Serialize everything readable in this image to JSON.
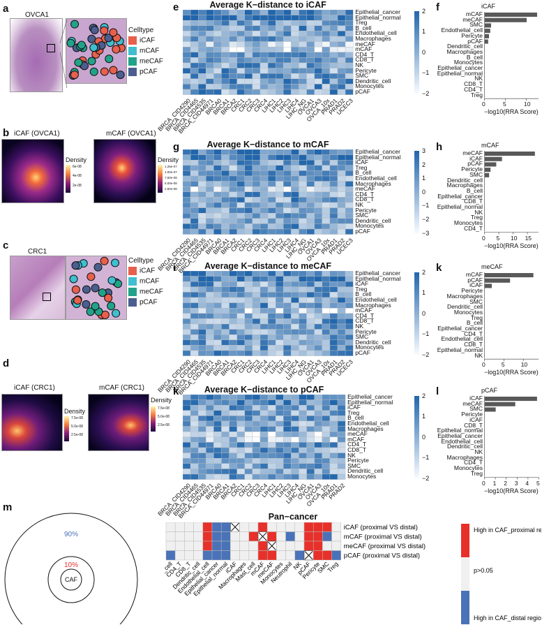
{
  "panel_letters": {
    "a": "a",
    "b": "b",
    "c": "c",
    "d": "d",
    "e": "e",
    "f": "f",
    "g": "g",
    "h": "h",
    "i": "i",
    "k": "k",
    "k2": "k",
    "l": "l",
    "m": "m"
  },
  "panel_a": {
    "title": "OVCA1",
    "legend_title": "Celltype",
    "legend": [
      {
        "label": "iCAF",
        "color": "#e8604c"
      },
      {
        "label": "mCAF",
        "color": "#3fbfcf"
      },
      {
        "label": "meCAF",
        "color": "#21a38a"
      },
      {
        "label": "pCAF",
        "color": "#4a5f8f"
      }
    ]
  },
  "panel_b": {
    "left_title": "iCAF (OVCA1)",
    "right_title": "mCAF (OVCA1)",
    "density_label": "Density",
    "left_ticks": [
      "6e-08",
      "4e-08",
      "2e-08"
    ],
    "right_ticks": [
      "1.25e-07",
      "1.00e-07",
      "7.50e-08",
      "5.00e-08",
      "2.50e-08"
    ]
  },
  "panel_c": {
    "title": "CRC1",
    "legend_title": "Celltype",
    "legend": [
      {
        "label": "iCAF",
        "color": "#e8604c"
      },
      {
        "label": "mCAF",
        "color": "#3fbfcf"
      },
      {
        "label": "meCAF",
        "color": "#21a38a"
      },
      {
        "label": "pCAF",
        "color": "#4a5f8f"
      }
    ]
  },
  "panel_d": {
    "left_title": "iCAF (CRC1)",
    "right_title": "mCAF (CRC1)",
    "density_label": "Density",
    "left_ticks": [
      "7.5e-08",
      "5.0e-08",
      "2.5e-08"
    ],
    "right_ticks": [
      "7.5e-08",
      "5.0e-08",
      "2.5e-08"
    ]
  },
  "heatmaps": [
    {
      "title": "Average K−distance to iCAF",
      "rows": [
        "Epithelial_cancer",
        "Epithelial_normal",
        "Treg",
        "B_cell",
        "Endothelial_cell",
        "Macrophages",
        "meCAF",
        "mCAF",
        "CD4_T",
        "CD8_T",
        "NK",
        "Pericyte",
        "SMC",
        "Dendritic_cell",
        "Monocytes",
        "pCAF"
      ],
      "cols": [
        "BRCA_CID4290",
        "BRCA_CID4465",
        "BRCA_CID4535",
        "BRCA_CID44971",
        "BRCA0",
        "BRCA1",
        "BRCA2",
        "CRC1",
        "CRC2",
        "CRC3",
        "CRC4",
        "LIHC1",
        "LIHC2",
        "LIHC3",
        "LIHC4",
        "LIHC_NG",
        "OVCA1",
        "OVCA3",
        "OVCA_10x",
        "PRAD1",
        "PRAD2",
        "UCEC3"
      ],
      "scale": [
        "2",
        "1",
        "0",
        "−1",
        "−2"
      ]
    },
    {
      "title": "Average K−distance to mCAF",
      "rows": [
        "Epithelial_cancer",
        "Epithelial_normal",
        "iCAF",
        "Treg",
        "B_cell",
        "Endothelial_cell",
        "Macrophages",
        "meCAF",
        "CD4_T",
        "CD8_T",
        "NK",
        "Pericyte",
        "SMC",
        "Dendritic_cell",
        "Monocytes",
        "pCAF"
      ],
      "cols": [
        "BRCA_CID4290",
        "BRCA_CID4465",
        "BRCA_CID4535",
        "BRCA_CID44971",
        "BRCA0",
        "BRCA1",
        "BRCA2",
        "CRC1",
        "CRC2",
        "CRC3",
        "CRC4",
        "LIHC1",
        "LIHC2",
        "LIHC3",
        "LIHC4",
        "LIHC_NG",
        "OVCA1",
        "OVCA3",
        "OVCA_10x",
        "PRAD1",
        "PRAD2",
        "UCEC3"
      ],
      "scale": [
        "3",
        "2",
        "1",
        "0",
        "−1",
        "−2",
        "−3"
      ]
    },
    {
      "title": "Average K−distance to meCAF",
      "rows": [
        "Epithelial_cancer",
        "Epithelial_normal",
        "iCAF",
        "Treg",
        "B_cell",
        "Endothelial_cell",
        "Macrophages",
        "mCAF",
        "CD4_T",
        "CD8_T",
        "NK",
        "Pericyte",
        "SMC",
        "Dendritic_cell",
        "Monocytes",
        "pCAF"
      ],
      "cols": [
        "BRCA_CID4290",
        "BRCA_CID4465",
        "BRCA_CID4535",
        "BRCA_CID44971",
        "BRCA0",
        "BRCA1",
        "BRCA2",
        "CRC1",
        "CRC2",
        "CRC3",
        "CRC4",
        "LIHC1",
        "LIHC2",
        "LIHC3",
        "LIHC4",
        "LIHC_NG",
        "OVCA1",
        "OVCA3",
        "OVCA_10x",
        "PRAD1",
        "PRAD2",
        "UCEC3"
      ],
      "scale": [
        "2",
        "1",
        "0",
        "−1",
        "−2"
      ]
    },
    {
      "title": "Average K−distance to pCAF",
      "rows": [
        "Epithelial_cancer",
        "Epithelial_normal",
        "iCAF",
        "Treg",
        "B_cell",
        "Endothelial_cell",
        "Macrophages",
        "meCAF",
        "mCAF",
        "CD4_T",
        "CD8_T",
        "NK",
        "Pericyte",
        "SMC",
        "Dendritic_cell",
        "Monocytes"
      ],
      "cols": [
        "BRCA_CID4290",
        "BRCA_CID4465",
        "BRCA_CID4535",
        "BRCA_CID44971",
        "BRCA0",
        "BRCA1",
        "BRCA2",
        "CRC1",
        "CRC2",
        "CRC3",
        "CRC4",
        "LIHC1",
        "LIHC2",
        "LIHC3",
        "LIHC4",
        "LIHC_NG",
        "OVCA1",
        "OVCA3",
        "OVCA_10x",
        "PRAD1",
        "PRAD2"
      ],
      "scale": [
        "2",
        "1",
        "0",
        "−1",
        "−2"
      ]
    }
  ],
  "chart_data": [
    {
      "type": "bar",
      "title": "iCAF",
      "xlabel": "−log10(RRA Score)",
      "xlim": [
        0,
        13
      ],
      "xticks": [
        "0",
        "5",
        "10"
      ],
      "categories": [
        "mCAF",
        "meCAF",
        "SMC",
        "Endothelial_cell",
        "Pericyte",
        "pCAF",
        "Dendritic_cell",
        "Macrophages",
        "B_cell",
        "Monocytes",
        "Epithelial_cancer",
        "Epithelial_normal",
        "NK",
        "CD8_T",
        "CD4_T",
        "Treg"
      ],
      "values": [
        12.5,
        10.0,
        1.5,
        1.3,
        1.0,
        0.8,
        0,
        0,
        0,
        0,
        0,
        0,
        0,
        0,
        0,
        0
      ]
    },
    {
      "type": "bar",
      "title": "mCAF",
      "xlabel": "−log10(RRA Score)",
      "xlim": [
        0,
        19
      ],
      "xticks": [
        "0",
        "5",
        "10",
        "15"
      ],
      "categories": [
        "meCAF",
        "iCAF",
        "pCAF",
        "Pericyte",
        "SMC",
        "Dendritic_cell",
        "Macrophages",
        "B_cell",
        "Epithelial_cancer",
        "CD8_T",
        "Epithelial_normal",
        "NK",
        "Treg",
        "Monocytes",
        "CD4_T"
      ],
      "values": [
        17.5,
        6.0,
        4.0,
        2.0,
        1.5,
        0,
        0,
        0,
        0,
        0,
        0,
        0,
        0,
        0,
        0
      ]
    },
    {
      "type": "bar",
      "title": "meCAF",
      "xlabel": "−log10(RRA Score)",
      "xlim": [
        0,
        14
      ],
      "xticks": [
        "0",
        "5",
        "10"
      ],
      "categories": [
        "mCAF",
        "pCAF",
        "iCAF",
        "Pericyte",
        "Macrophages",
        "SMC",
        "Dendritic_cell",
        "Monocytes",
        "Treg",
        "B_cell",
        "Epithelial_cancer",
        "CD4_T",
        "Endothelial_cell",
        "CD8_T",
        "Epithelial_normal",
        "NK"
      ],
      "values": [
        12.5,
        6.5,
        1.8,
        0,
        0,
        0,
        0,
        0,
        0,
        0,
        0,
        0,
        0,
        0,
        0,
        0
      ]
    },
    {
      "type": "bar",
      "title": "pCAF",
      "xlabel": "−log10(RRA Score)",
      "xlim": [
        0,
        5
      ],
      "xticks": [
        "0",
        "1",
        "2",
        "3",
        "4",
        "5"
      ],
      "categories": [
        "iCAF",
        "meCAF",
        "SMC",
        "Pericyte",
        "iCAF",
        "CD8_T",
        "Epithelial_normal",
        "Epithelial_cancer",
        "Endothelial_cell",
        "Dendritic_cell",
        "NK",
        "Macrophages",
        "CD4_T",
        "Monocytes",
        "Treg"
      ],
      "values": [
        4.8,
        2.8,
        1.0,
        0,
        0,
        0,
        0,
        0,
        0,
        0,
        0,
        0,
        0,
        0,
        0
      ]
    },
    {
      "type": "heatmap",
      "title": "Pan−cancer",
      "cols": [
        "B_cell",
        "CD4_T",
        "CD8_T",
        "Dendritic_cell",
        "Endothelial_cell",
        "Epithelial_cancer",
        "Epithelial_normal",
        "iCAF",
        "Macrophages",
        "Mast_cell",
        "mCAF",
        "meCAF",
        "Monocytes",
        "Neutrophil",
        "NK",
        "pCAF",
        "Pericyte",
        "SMC",
        "Treg"
      ],
      "rows": [
        "iCAF (proximal VS distal)",
        "mCAF (proximal VS distal)",
        "meCAF (proximal VS distal)",
        "pCAF (proximal VS distal)"
      ],
      "values": [
        [
          0,
          0,
          0,
          0,
          1,
          -1,
          -1,
          2,
          0,
          0,
          1,
          0,
          0,
          0,
          0,
          1,
          1,
          1,
          0
        ],
        [
          0,
          0,
          0,
          0,
          1,
          -1,
          -1,
          0,
          0,
          1,
          2,
          1,
          0,
          -1,
          0,
          1,
          1,
          -1,
          0
        ],
        [
          0,
          0,
          0,
          0,
          1,
          -1,
          -1,
          0,
          0,
          0,
          1,
          2,
          0,
          0,
          0,
          1,
          1,
          0,
          0
        ],
        [
          -1,
          0,
          0,
          0,
          -1,
          -1,
          -1,
          0,
          0,
          0,
          1,
          1,
          0,
          0,
          -1,
          2,
          1,
          1,
          -1
        ]
      ],
      "legend": [
        "High in CAF_proximal region",
        "p>0.05",
        "High in CAF_distal region"
      ],
      "colors": {
        "high": "#e8302a",
        "neutral": "#f0f0f0",
        "low": "#4a72b8"
      }
    }
  ],
  "panel_m": {
    "outer_pct": "90%",
    "inner_pct": "10%",
    "center": "CAF"
  }
}
